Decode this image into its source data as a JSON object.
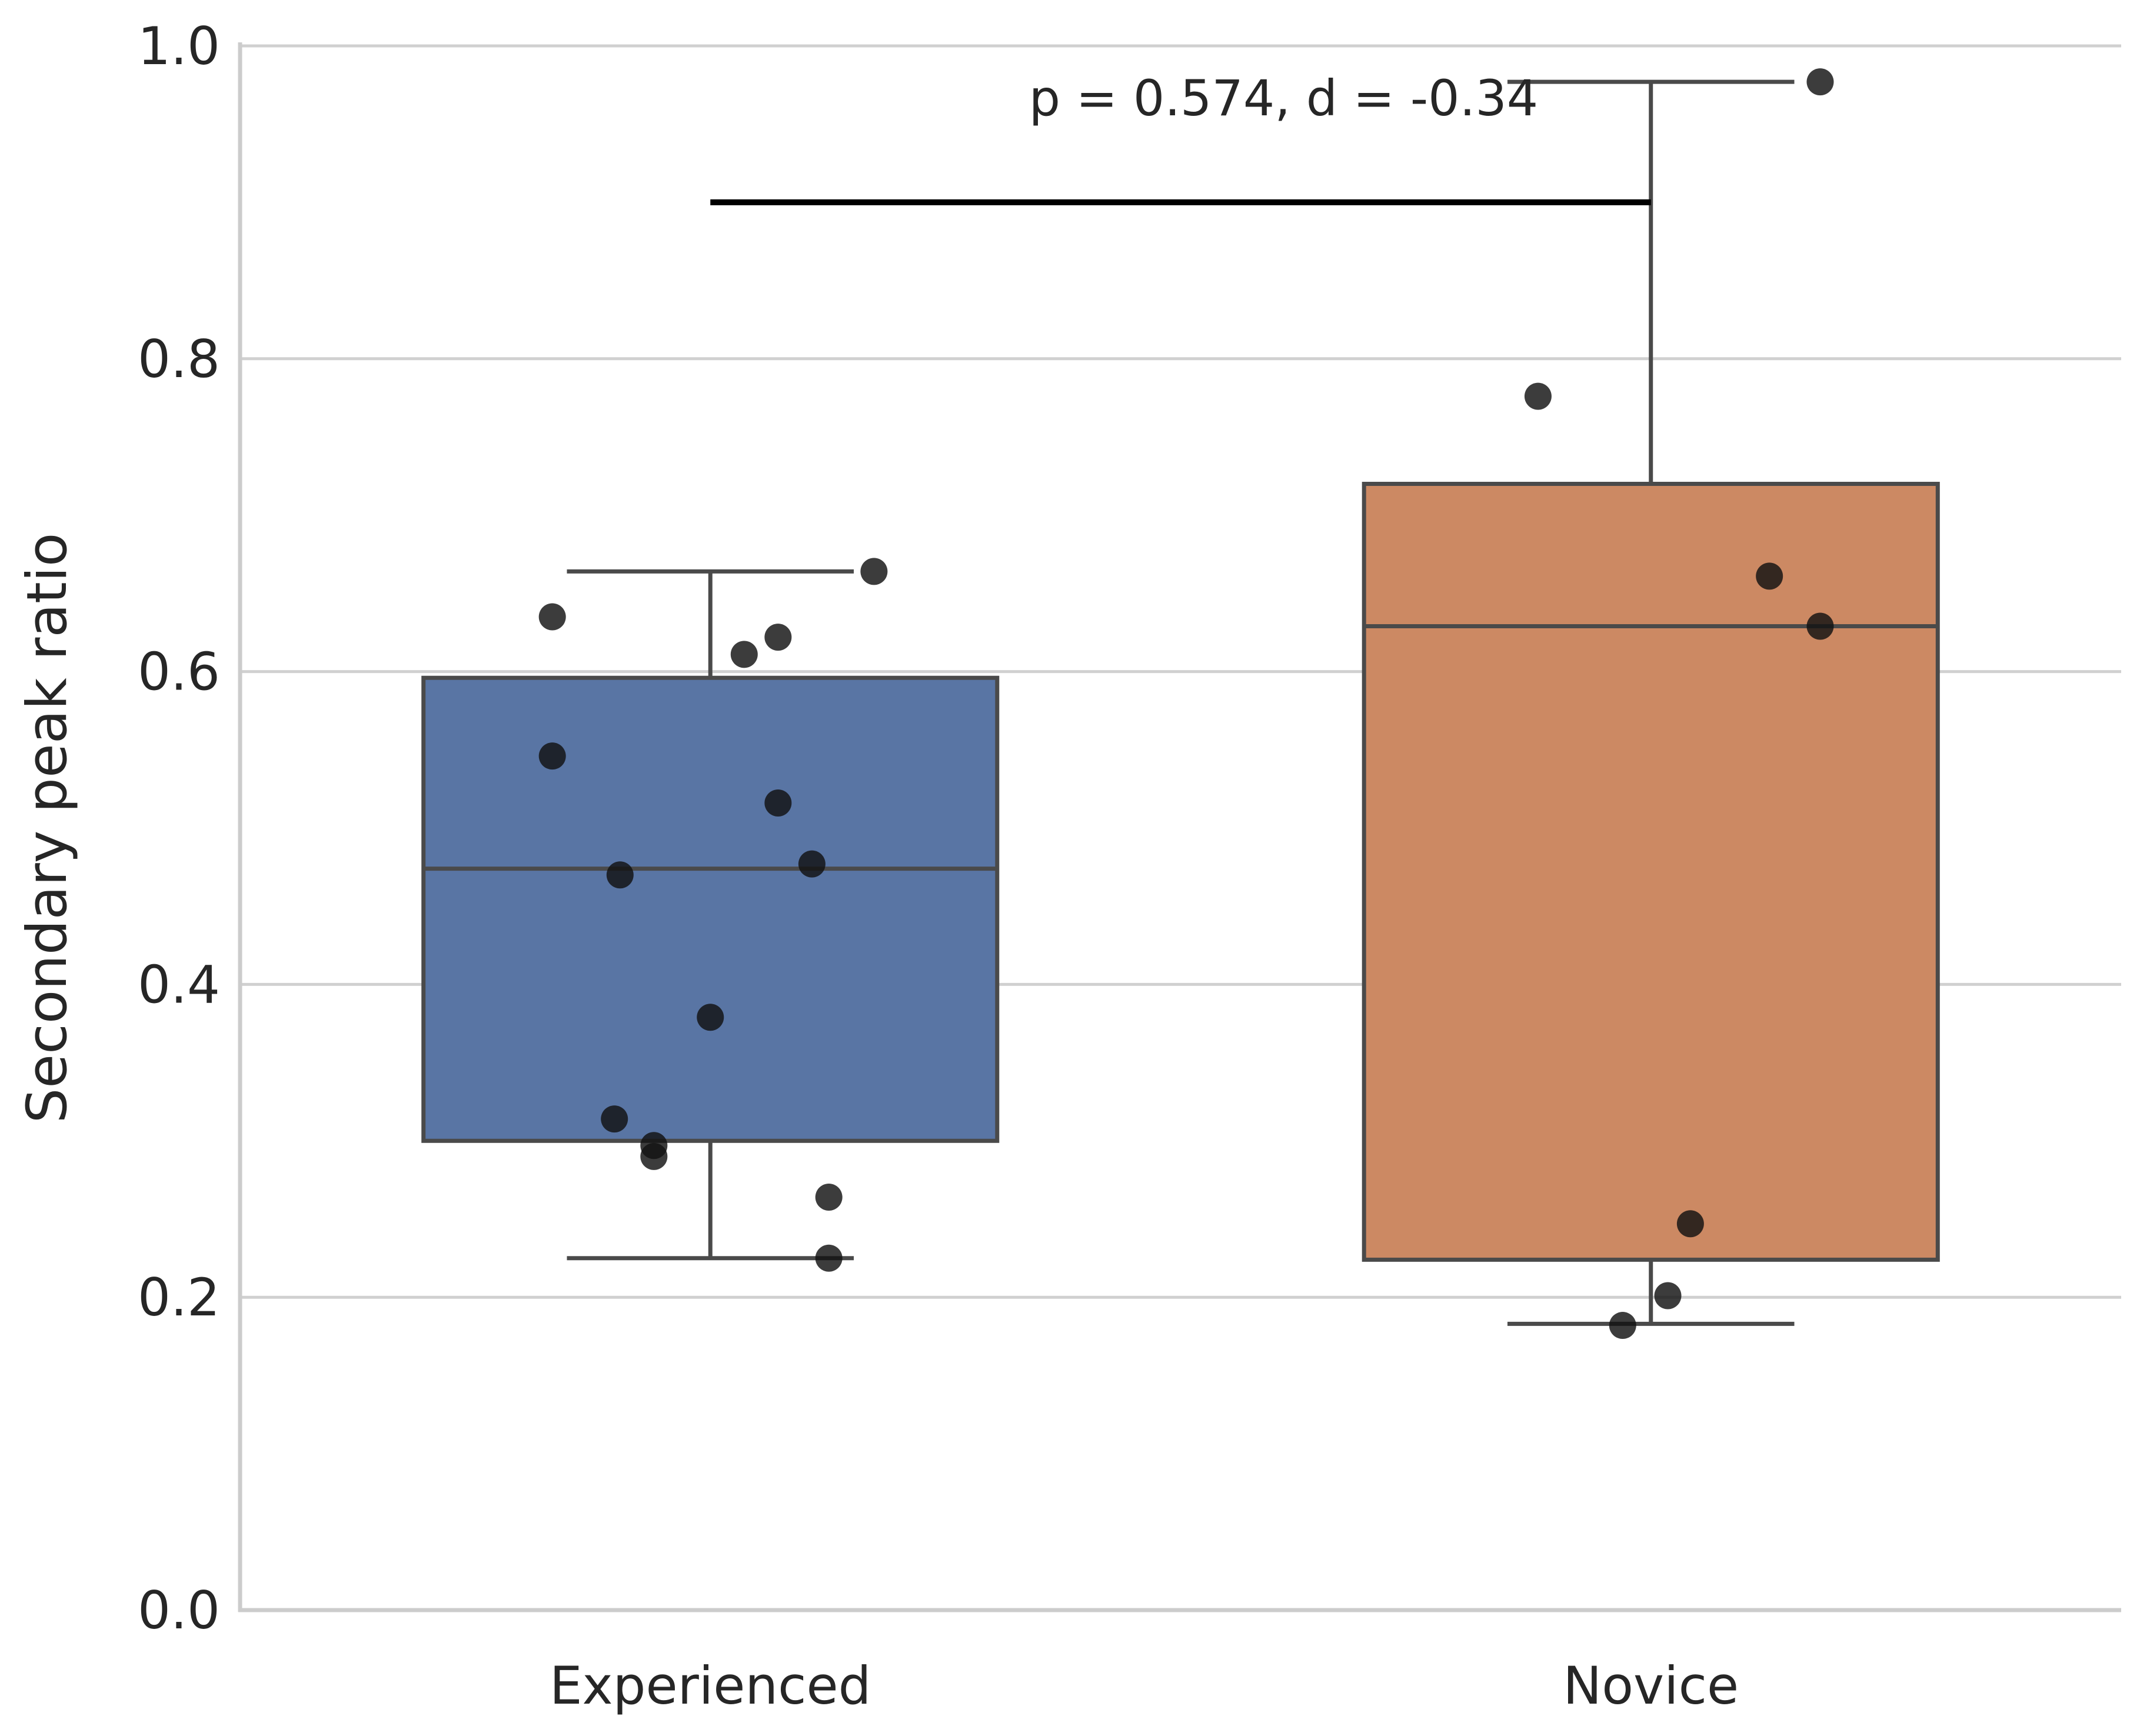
{
  "chart_data": {
    "type": "box",
    "ylabel": "Secondary peak ratio",
    "xlabel": "",
    "ylim": [
      0.0,
      1.0
    ],
    "yticks": [
      "0.0",
      "0.2",
      "0.4",
      "0.6",
      "0.8",
      "1.0"
    ],
    "grid": "horizontal",
    "categories": [
      "Experienced",
      "Novice"
    ],
    "groups": [
      {
        "label": "Experienced",
        "color": "#5975A4",
        "whisker_low": 0.225,
        "q1": 0.3,
        "median": 0.474,
        "q3": 0.596,
        "whisker_high": 0.664,
        "points": [
          {
            "jitter": -0.28,
            "y": 0.635
          },
          {
            "jitter": 0.06,
            "y": 0.611
          },
          {
            "jitter": 0.12,
            "y": 0.622
          },
          {
            "jitter": 0.29,
            "y": 0.664
          },
          {
            "jitter": -0.28,
            "y": 0.546
          },
          {
            "jitter": 0.12,
            "y": 0.516
          },
          {
            "jitter": -0.16,
            "y": 0.47
          },
          {
            "jitter": 0.18,
            "y": 0.477
          },
          {
            "jitter": 0.0,
            "y": 0.379
          },
          {
            "jitter": -0.17,
            "y": 0.314
          },
          {
            "jitter": -0.1,
            "y": 0.297
          },
          {
            "jitter": -0.1,
            "y": 0.29
          },
          {
            "jitter": 0.21,
            "y": 0.264
          },
          {
            "jitter": 0.21,
            "y": 0.225
          }
        ]
      },
      {
        "label": "Novice",
        "color": "#CC8963",
        "whisker_low": 0.183,
        "q1": 0.224,
        "median": 0.629,
        "q3": 0.72,
        "whisker_high": 0.977,
        "points": [
          {
            "jitter": 0.3,
            "y": 0.977
          },
          {
            "jitter": -0.2,
            "y": 0.776
          },
          {
            "jitter": 0.21,
            "y": 0.661
          },
          {
            "jitter": 0.3,
            "y": 0.629
          },
          {
            "jitter": 0.07,
            "y": 0.247
          },
          {
            "jitter": 0.03,
            "y": 0.201
          },
          {
            "jitter": -0.05,
            "y": 0.182
          }
        ]
      }
    ],
    "annotation": {
      "text": "p = 0.574, d = -0.34",
      "bar_y": 0.9
    }
  }
}
